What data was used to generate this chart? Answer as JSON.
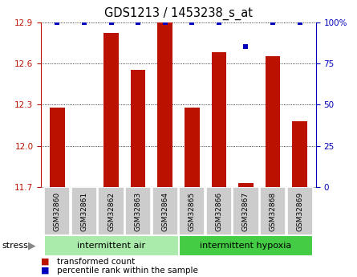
{
  "title": "GDS1213 / 1453238_s_at",
  "samples": [
    "GSM32860",
    "GSM32861",
    "GSM32862",
    "GSM32863",
    "GSM32864",
    "GSM32865",
    "GSM32866",
    "GSM32867",
    "GSM32868",
    "GSM32869"
  ],
  "transformed_counts": [
    12.28,
    11.7,
    12.82,
    12.55,
    12.9,
    12.28,
    12.68,
    11.73,
    12.65,
    12.18
  ],
  "percentile_ranks": [
    100,
    100,
    100,
    100,
    100,
    100,
    100,
    85,
    100,
    100
  ],
  "groups": [
    {
      "label": "intermittent air",
      "start": 0,
      "end": 5,
      "color": "#aaeaaa"
    },
    {
      "label": "intermittent hypoxia",
      "start": 5,
      "end": 10,
      "color": "#44cc44"
    }
  ],
  "group_label": "stress",
  "ylim_left": [
    11.7,
    12.9
  ],
  "yticks_left": [
    11.7,
    12.0,
    12.3,
    12.6,
    12.9
  ],
  "ylim_right": [
    0,
    100
  ],
  "yticks_right": [
    0,
    25,
    50,
    75,
    100
  ],
  "bar_color": "#BB1100",
  "dot_color": "#0000BB",
  "bar_width": 0.55,
  "tick_label_area_color": "#CCCCCC",
  "legend_items": [
    {
      "label": "transformed count",
      "color": "#BB1100"
    },
    {
      "label": "percentile rank within the sample",
      "color": "#0000BB"
    }
  ]
}
